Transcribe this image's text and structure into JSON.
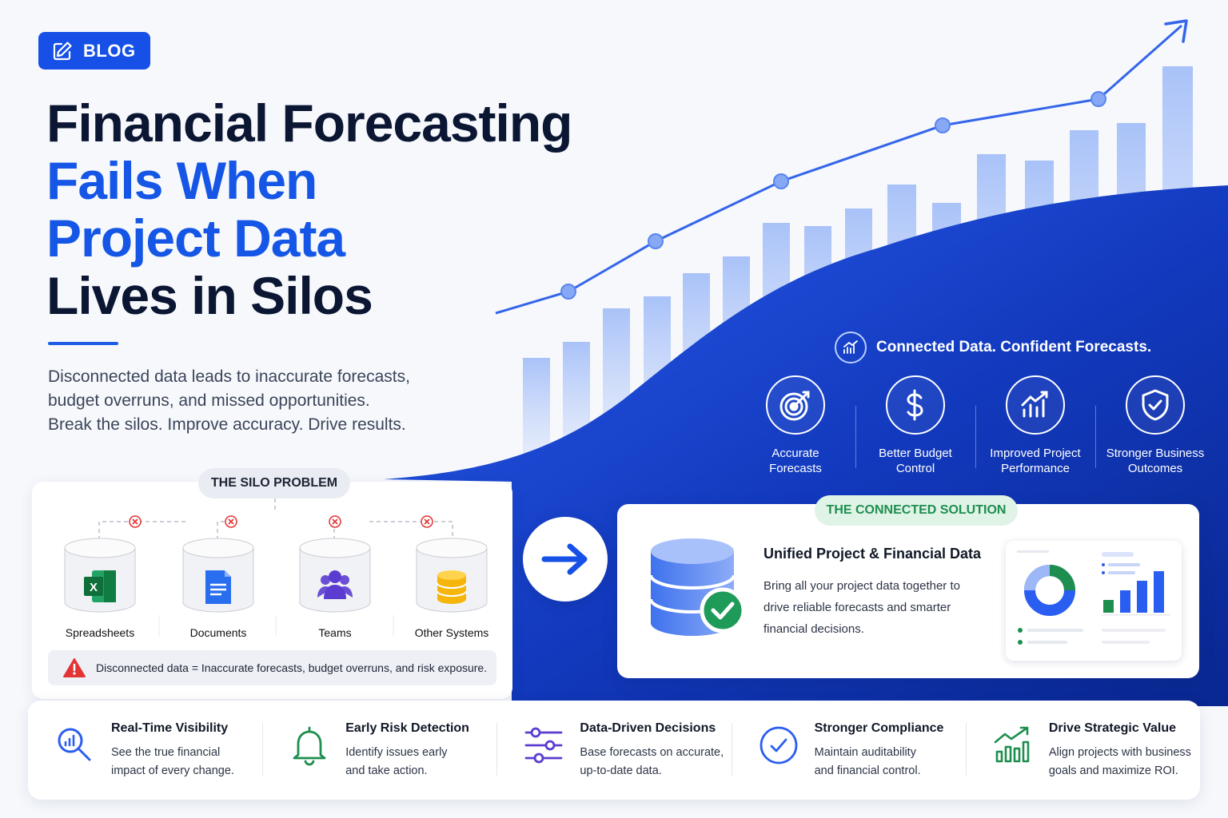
{
  "badge": {
    "label": "BLOG",
    "icon": "edit-icon"
  },
  "headline": {
    "line1": "Financial Forecasting",
    "line2": "Fails When",
    "line3": "Project Data",
    "line4": "Lives in Silos"
  },
  "intro": {
    "line1": "Disconnected data leads to inaccurate forecasts,",
    "line2": "budget overruns, and missed opportunities.",
    "line3": "Break the silos. Improve accuracy. Drive results."
  },
  "connected": {
    "title": "Connected Data. Confident Forecasts.",
    "benefits": [
      {
        "line1": "Accurate",
        "line2": "Forecasts",
        "icon": "target-icon"
      },
      {
        "line1": "Better Budget",
        "line2": "Control",
        "icon": "dollar-icon"
      },
      {
        "line1": "Improved Project",
        "line2": "Performance",
        "icon": "growth-chart-icon"
      },
      {
        "line1": "Stronger Business",
        "line2": "Outcomes",
        "icon": "shield-check-icon"
      }
    ]
  },
  "silo": {
    "tag": "THE SILO PROBLEM",
    "items": [
      {
        "label": "Spreadsheets",
        "icon": "spreadsheet-icon"
      },
      {
        "label": "Documents",
        "icon": "document-icon"
      },
      {
        "label": "Teams",
        "icon": "team-icon"
      },
      {
        "label": "Other Systems",
        "icon": "database-icon"
      }
    ],
    "warning": "Disconnected data = Inaccurate forecasts, budget overruns, and risk exposure."
  },
  "solution": {
    "tag": "THE CONNECTED SOLUTION",
    "title": "Unified Project & Financial Data",
    "line1": "Bring all your project data together to",
    "line2": "drive reliable forecasts and smarter",
    "line3": "financial decisions."
  },
  "features": [
    {
      "title": "Real-Time Visibility",
      "line1": "See the true financial",
      "line2": "impact of every change.",
      "icon": "search-chart-icon"
    },
    {
      "title": "Early Risk Detection",
      "line1": "Identify issues early",
      "line2": "and take action.",
      "icon": "bell-icon"
    },
    {
      "title": "Data-Driven Decisions",
      "line1": "Base forecasts on accurate,",
      "line2": "up-to-date data.",
      "icon": "sliders-icon"
    },
    {
      "title": "Stronger Compliance",
      "line1": "Maintain auditability",
      "line2": "and financial control.",
      "icon": "check-circle-icon"
    },
    {
      "title": "Drive Strategic Value",
      "line1": "Align projects with business",
      "line2": "goals and maximize ROI.",
      "icon": "trend-bars-icon"
    }
  ],
  "colors": {
    "brand_blue": "#1556e6",
    "navy": "#0b1633",
    "deep_blue": "#0c2fa8",
    "green": "#1e8e4e",
    "red": "#e23434"
  }
}
